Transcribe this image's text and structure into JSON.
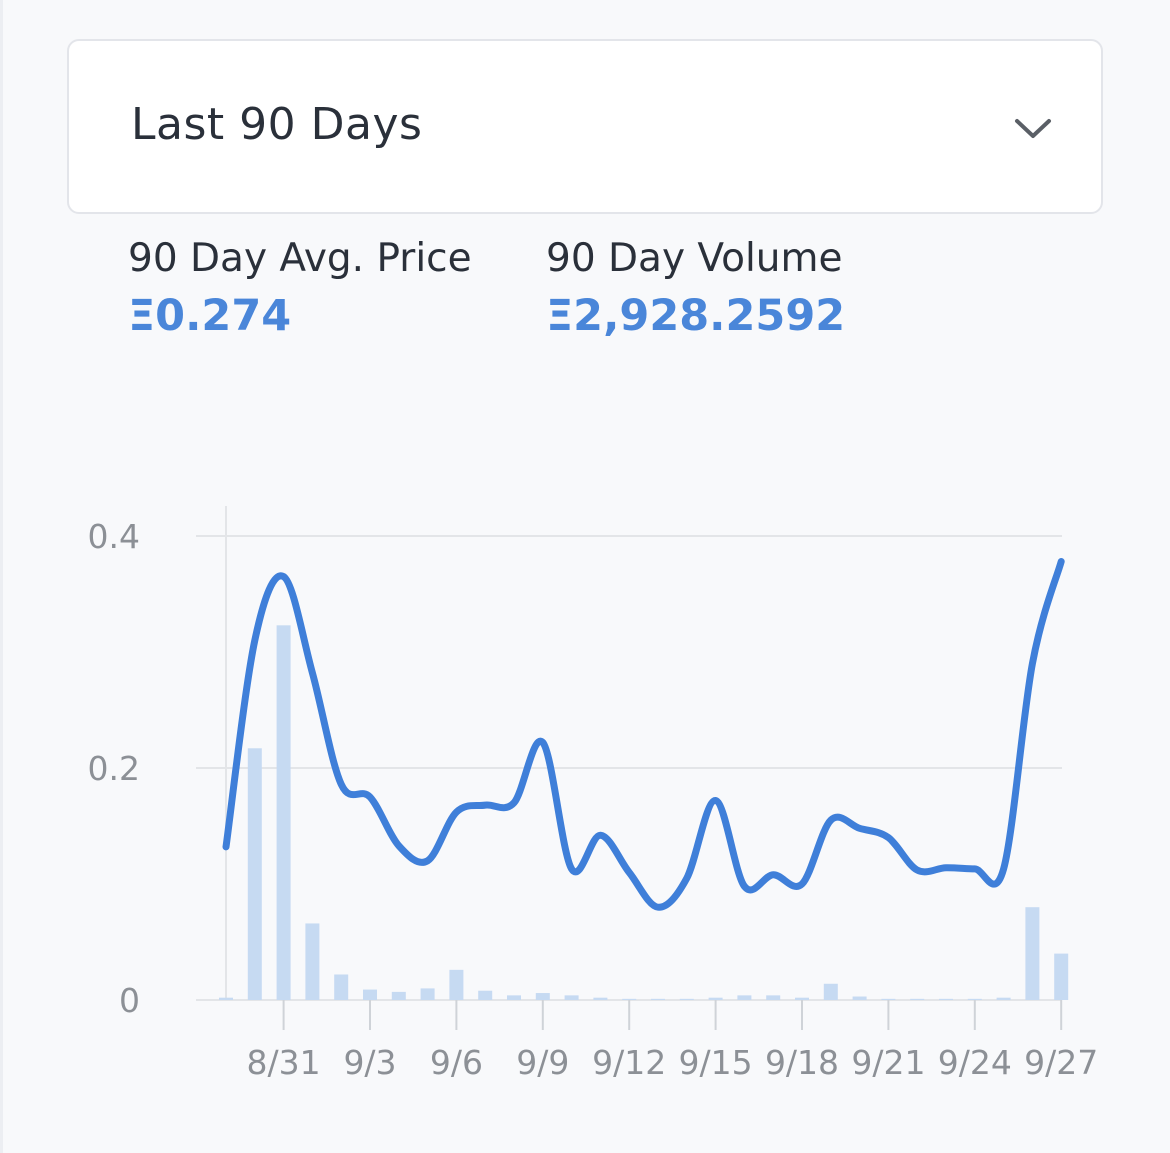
{
  "filter": {
    "selected": "Last 90 Days"
  },
  "icons": {
    "dropdown": "chevron-down-icon"
  },
  "stats": [
    {
      "label": "90 Day Avg. Price",
      "value": "Ξ0.274"
    },
    {
      "label": "90 Day Volume",
      "value": "Ξ2,928.2592"
    }
  ],
  "colors": {
    "accent": "#4a86d9",
    "line": "#3f7fd9",
    "bar": "#c6daf2",
    "grid": "#e3e5e8",
    "tick_text": "#8c9096"
  },
  "chart_data": {
    "type": "line+bar",
    "x_tick_labels": [
      "8/31",
      "9/3",
      "9/6",
      "9/9",
      "9/12",
      "9/15",
      "9/18",
      "9/21",
      "9/24",
      "9/27"
    ],
    "y_tick_labels": [
      "0",
      "0.2",
      "0.4"
    ],
    "ylim": [
      0,
      0.4
    ],
    "grid": "horizontal",
    "price_series": {
      "x": [
        "8/29",
        "8/30",
        "8/31",
        "9/1",
        "9/2",
        "9/3",
        "9/4",
        "9/5",
        "9/6",
        "9/7",
        "9/8",
        "9/9",
        "9/10",
        "9/11",
        "9/12",
        "9/13",
        "9/14",
        "9/15",
        "9/16",
        "9/17",
        "9/18",
        "9/19",
        "9/20",
        "9/21",
        "9/22",
        "9/23",
        "9/24",
        "9/25",
        "9/26",
        "9/27"
      ],
      "values": [
        0.132,
        0.31,
        0.365,
        0.282,
        0.186,
        0.175,
        0.133,
        0.12,
        0.162,
        0.168,
        0.17,
        0.222,
        0.113,
        0.142,
        0.11,
        0.08,
        0.105,
        0.172,
        0.098,
        0.108,
        0.1,
        0.155,
        0.148,
        0.14,
        0.112,
        0.114,
        0.113,
        0.113,
        0.29,
        0.378
      ]
    },
    "volume_series": {
      "x": [
        "8/29",
        "8/30",
        "8/31",
        "9/1",
        "9/2",
        "9/3",
        "9/4",
        "9/5",
        "9/6",
        "9/7",
        "9/8",
        "9/9",
        "9/10",
        "9/11",
        "9/12",
        "9/13",
        "9/14",
        "9/15",
        "9/16",
        "9/17",
        "9/18",
        "9/19",
        "9/20",
        "9/21",
        "9/22",
        "9/23",
        "9/24",
        "9/25",
        "9/26",
        "9/27"
      ],
      "values": [
        0.002,
        0.217,
        0.323,
        0.066,
        0.022,
        0.009,
        0.007,
        0.01,
        0.026,
        0.008,
        0.004,
        0.006,
        0.004,
        0.002,
        0.001,
        0.001,
        0.001,
        0.002,
        0.004,
        0.004,
        0.002,
        0.014,
        0.003,
        0.001,
        0.001,
        0.001,
        0.001,
        0.002,
        0.08,
        0.04
      ]
    }
  }
}
